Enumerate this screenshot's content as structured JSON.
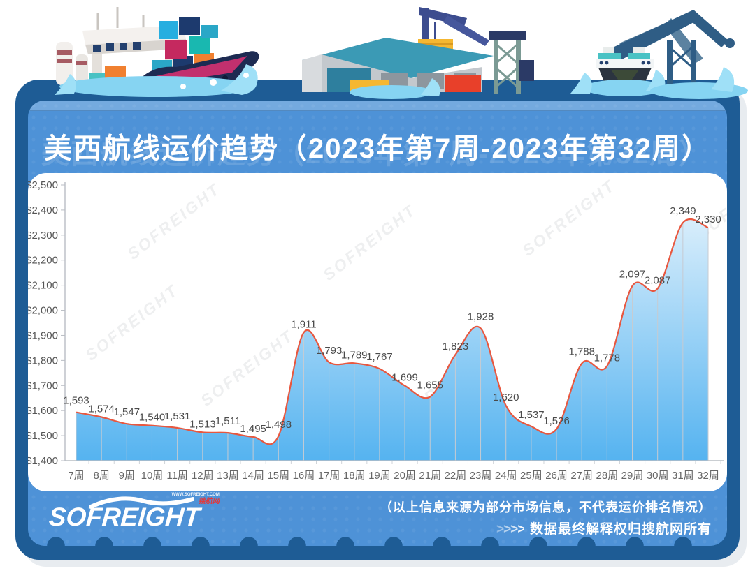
{
  "title": "美西航线运价趋势（2023年第7周-2023年第32周）",
  "watermark_text": "SOFREIGHT",
  "chart_data": {
    "type": "area",
    "title": "美西航线运价趋势（2023年第7周-2023年第32周）",
    "categories": [
      "7周",
      "8周",
      "9周",
      "10周",
      "11周",
      "12周",
      "13周",
      "14周",
      "15周",
      "16周",
      "17周",
      "18周",
      "19周",
      "20周",
      "21周",
      "22周",
      "23周",
      "24周",
      "25周",
      "26周",
      "27周",
      "28周",
      "29周",
      "30周",
      "31周",
      "32周"
    ],
    "values": [
      1593,
      1574,
      1547,
      1540,
      1531,
      1513,
      1511,
      1495,
      1498,
      1911,
      1793,
      1789,
      1767,
      1699,
      1655,
      1823,
      1928,
      1620,
      1537,
      1526,
      1788,
      1778,
      2097,
      2087,
      2349,
      2330
    ],
    "ylim": [
      1400,
      2500
    ],
    "ytick_step": 100,
    "y_prefix": "$",
    "xlabel": "",
    "ylabel": "",
    "grid": "vertical-droplines",
    "legend": "none",
    "line_color": "#e8573f",
    "area_gradient_top": "#ebf6fd",
    "area_gradient_bottom": "#55b3f0"
  },
  "footer": {
    "logo_text": "SOFREIGHT",
    "logo_url": "WWW.SOFREIGHT.COM",
    "logo_tag": "搜航网",
    "disclaimer_line1": "（以上信息来源为部分市场信息，不代表运价排名情况）",
    "disclaimer_arrows": ">>>>",
    "disclaimer_line2": "数据最终解释权归搜航网所有"
  },
  "colors": {
    "card_outer": "#1e5c95",
    "card_inner": "#4e92d7",
    "panel_background": "#ffffff",
    "line": "#e8573f",
    "area_top": "#ebf6fd",
    "area_bottom": "#55b3f0",
    "axis": "#b9bdc4",
    "data_label": "#4a4a4a",
    "title_text": "#ffffff"
  }
}
